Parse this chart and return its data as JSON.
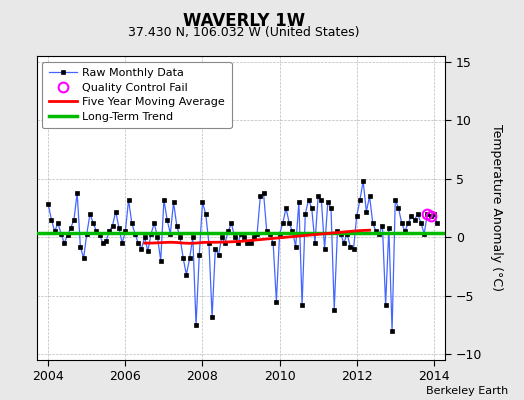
{
  "title": "WAVERLY 1W",
  "subtitle": "37.430 N, 106.032 W (United States)",
  "ylabel": "Temperature Anomaly (°C)",
  "credit": "Berkeley Earth",
  "xlim": [
    2003.7,
    2014.3
  ],
  "ylim": [
    -10.5,
    15.5
  ],
  "yticks": [
    -10,
    -5,
    0,
    5,
    10,
    15
  ],
  "xticks": [
    2004,
    2006,
    2008,
    2010,
    2012,
    2014
  ],
  "long_term_trend_y": 0.35,
  "bg_color": "#e8e8e8",
  "plot_bg_color": "#ffffff",
  "raw_color": "#4466ff",
  "ma_color": "#ff0000",
  "trend_color": "#00bb00",
  "qc_color": "#ff00ff",
  "raw_data": [
    2004.0,
    2.8,
    2004.083,
    1.5,
    2004.167,
    0.5,
    2004.25,
    1.2,
    2004.333,
    0.3,
    2004.417,
    -0.5,
    2004.5,
    0.2,
    2004.583,
    0.8,
    2004.667,
    1.5,
    2004.75,
    3.8,
    2004.833,
    -0.8,
    2004.917,
    -1.8,
    2005.0,
    0.3,
    2005.083,
    2.0,
    2005.167,
    1.2,
    2005.25,
    0.5,
    2005.333,
    0.2,
    2005.417,
    -0.5,
    2005.5,
    -0.3,
    2005.583,
    0.5,
    2005.667,
    1.0,
    2005.75,
    2.2,
    2005.833,
    0.8,
    2005.917,
    -0.5,
    2006.0,
    0.5,
    2006.083,
    3.2,
    2006.167,
    1.2,
    2006.25,
    0.3,
    2006.333,
    -0.5,
    2006.417,
    -1.0,
    2006.5,
    0.0,
    2006.583,
    -1.2,
    2006.667,
    0.3,
    2006.75,
    1.2,
    2006.833,
    0.0,
    2006.917,
    -2.0,
    2007.0,
    3.2,
    2007.083,
    1.5,
    2007.167,
    0.3,
    2007.25,
    3.0,
    2007.333,
    1.0,
    2007.417,
    0.0,
    2007.5,
    -1.8,
    2007.583,
    -3.2,
    2007.667,
    -1.8,
    2007.75,
    0.0,
    2007.833,
    -7.5,
    2007.917,
    -1.5,
    2008.0,
    3.0,
    2008.083,
    2.0,
    2008.167,
    -0.5,
    2008.25,
    -6.8,
    2008.333,
    -1.0,
    2008.417,
    -1.5,
    2008.5,
    0.0,
    2008.583,
    -0.5,
    2008.667,
    0.5,
    2008.75,
    1.2,
    2008.833,
    0.0,
    2008.917,
    -0.5,
    2009.0,
    0.3,
    2009.083,
    0.0,
    2009.167,
    -0.5,
    2009.25,
    -0.5,
    2009.333,
    0.0,
    2009.417,
    0.3,
    2009.5,
    3.5,
    2009.583,
    3.8,
    2009.667,
    0.5,
    2009.75,
    0.3,
    2009.833,
    -0.5,
    2009.917,
    -5.5,
    2010.0,
    0.3,
    2010.083,
    1.2,
    2010.167,
    2.5,
    2010.25,
    1.2,
    2010.333,
    0.5,
    2010.417,
    -0.8,
    2010.5,
    3.0,
    2010.583,
    -5.8,
    2010.667,
    2.0,
    2010.75,
    3.2,
    2010.833,
    2.5,
    2010.917,
    -0.5,
    2011.0,
    3.5,
    2011.083,
    3.2,
    2011.167,
    -1.0,
    2011.25,
    3.0,
    2011.333,
    2.5,
    2011.417,
    -6.2,
    2011.5,
    0.5,
    2011.583,
    0.3,
    2011.667,
    -0.5,
    2011.75,
    0.3,
    2011.833,
    -0.8,
    2011.917,
    -1.0,
    2012.0,
    1.8,
    2012.083,
    3.2,
    2012.167,
    4.8,
    2012.25,
    2.2,
    2012.333,
    3.5,
    2012.417,
    1.2,
    2012.5,
    0.5,
    2012.583,
    0.3,
    2012.667,
    1.0,
    2012.75,
    -5.8,
    2012.833,
    0.8,
    2012.917,
    -8.0,
    2013.0,
    3.2,
    2013.083,
    2.5,
    2013.167,
    1.2,
    2013.25,
    0.5,
    2013.333,
    1.2,
    2013.417,
    1.8,
    2013.5,
    1.5,
    2013.583,
    2.0,
    2013.667,
    1.2,
    2013.75,
    0.3,
    2013.833,
    2.0,
    2013.917,
    1.8,
    2014.0,
    2.0,
    2014.083,
    1.2
  ],
  "ma_data": [
    2006.5,
    -0.5,
    2006.667,
    -0.5,
    2006.833,
    -0.48,
    2007.0,
    -0.45,
    2007.167,
    -0.43,
    2007.333,
    -0.45,
    2007.5,
    -0.5,
    2007.667,
    -0.52,
    2007.833,
    -0.5,
    2008.0,
    -0.45,
    2008.167,
    -0.43,
    2008.333,
    -0.43,
    2008.5,
    -0.42,
    2008.667,
    -0.4,
    2008.833,
    -0.38,
    2009.0,
    -0.35,
    2009.167,
    -0.3,
    2009.333,
    -0.25,
    2009.5,
    -0.2,
    2009.667,
    -0.15,
    2009.833,
    -0.1,
    2010.0,
    -0.05,
    2010.167,
    0.0,
    2010.333,
    0.05,
    2010.5,
    0.1,
    2010.667,
    0.15,
    2010.833,
    0.2,
    2011.0,
    0.25,
    2011.167,
    0.3,
    2011.333,
    0.35,
    2011.5,
    0.4,
    2011.667,
    0.45,
    2011.833,
    0.5,
    2012.0,
    0.55,
    2012.167,
    0.58,
    2012.333,
    0.6
  ],
  "qc_points": [
    [
      2013.833,
      2.0
    ],
    [
      2013.917,
      1.8
    ]
  ]
}
